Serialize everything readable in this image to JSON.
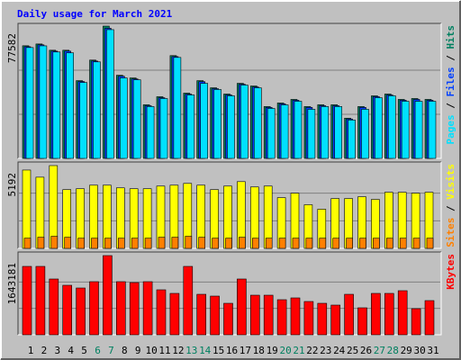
{
  "chart_data": [
    {
      "type": "bar",
      "title": "Daily usage for March 2021",
      "ylim": [
        0,
        77582
      ],
      "yticks": [
        77582
      ],
      "series": [
        {
          "name": "Hits",
          "color": "#008060",
          "values": [
            66050,
            67100,
            63430,
            63430,
            45600,
            57660,
            77582,
            48750,
            47180,
            31450,
            36170,
            60280,
            38270,
            45600,
            41410,
            37740,
            44030,
            42460,
            30400,
            32500,
            34600,
            30400,
            31450,
            31450,
            23590,
            30400,
            36690,
            37740,
            34600,
            35120,
            34600
          ]
        },
        {
          "name": "Files",
          "color": "#0040ff",
          "values": [
            65500,
            66600,
            62900,
            62900,
            45100,
            57100,
            76300,
            48200,
            46600,
            30900,
            35600,
            59700,
            37700,
            45000,
            40900,
            37200,
            43500,
            41900,
            29900,
            32000,
            34100,
            29900,
            30900,
            30900,
            23100,
            29900,
            36200,
            37200,
            34100,
            34600,
            34100
          ]
        },
        {
          "name": "Pages",
          "color": "#00e0ff",
          "values": [
            65000,
            66000,
            62400,
            61900,
            44500,
            56600,
            75500,
            47200,
            46100,
            30400,
            35100,
            59200,
            37200,
            44000,
            40400,
            36700,
            43000,
            41400,
            29300,
            31400,
            33500,
            28800,
            30400,
            30400,
            22500,
            28800,
            35600,
            36700,
            33500,
            33500,
            33500
          ]
        }
      ]
    },
    {
      "type": "bar",
      "ylim": [
        0,
        5192
      ],
      "yticks": [
        5192
      ],
      "series": [
        {
          "name": "Visits",
          "color": "#ffff00",
          "values": [
            4913,
            4466,
            5192,
            3685,
            3741,
            3964,
            3964,
            3796,
            3741,
            3741,
            3908,
            3964,
            4075,
            3964,
            3685,
            3908,
            4187,
            3852,
            3908,
            3182,
            3461,
            2736,
            2456,
            3126,
            3126,
            3238,
            3071,
            3517,
            3517,
            3461,
            3517
          ]
        },
        {
          "name": "Sites",
          "color": "#ff8000",
          "values": [
            640,
            700,
            760,
            700,
            640,
            640,
            640,
            640,
            640,
            640,
            700,
            700,
            760,
            700,
            640,
            640,
            700,
            640,
            640,
            640,
            640,
            640,
            640,
            640,
            640,
            640,
            640,
            640,
            640,
            640,
            640
          ]
        }
      ]
    },
    {
      "type": "bar",
      "ylim": [
        0,
        1643181
      ],
      "yticks": [
        1643181
      ],
      "categories": [
        "1",
        "2",
        "3",
        "4",
        "5",
        "6",
        "7",
        "8",
        "9",
        "10",
        "11",
        "12",
        "13",
        "14",
        "15",
        "16",
        "17",
        "18",
        "19",
        "20",
        "21",
        "22",
        "23",
        "24",
        "25",
        "26",
        "27",
        "28",
        "29",
        "30",
        "31"
      ],
      "category_colors": [
        "#000000",
        "#000000",
        "#000000",
        "#000000",
        "#000000",
        "#008060",
        "#008060",
        "#000000",
        "#000000",
        "#000000",
        "#000000",
        "#000000",
        "#008060",
        "#008060",
        "#000000",
        "#000000",
        "#000000",
        "#000000",
        "#000000",
        "#008060",
        "#008060",
        "#000000",
        "#000000",
        "#000000",
        "#000000",
        "#000000",
        "#008060",
        "#008060",
        "#000000",
        "#000000",
        "#000000"
      ],
      "series": [
        {
          "name": "KBytes",
          "color": "#ff0000",
          "values": [
            1419100,
            1419100,
            1157700,
            1027000,
            971000,
            1101700,
            1643181,
            1101700,
            1083000,
            1101700,
            933600,
            858900,
            1419100,
            840200,
            802900,
            653500,
            1157700,
            821600,
            821600,
            728200,
            765600,
            690900,
            653500,
            616200,
            840200,
            560200,
            858900,
            858900,
            915000,
            541500,
            709500
          ]
        }
      ]
    }
  ]
}
